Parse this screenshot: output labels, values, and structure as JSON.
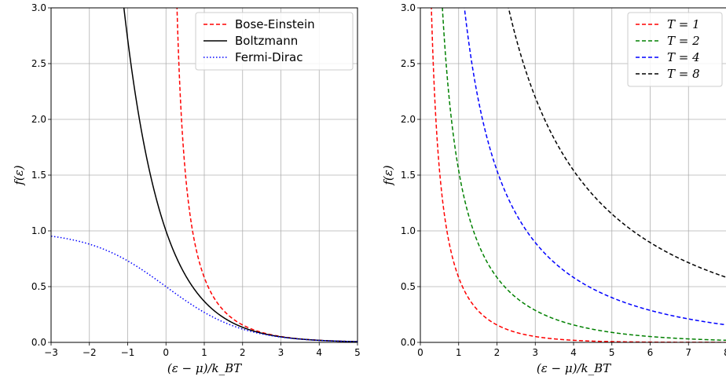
{
  "chart_data": [
    {
      "type": "line",
      "title": "",
      "xlabel": "(ε − μ)/k_BT",
      "ylabel": "f(ε)",
      "xlim": [
        -3,
        5
      ],
      "ylim": [
        0,
        3
      ],
      "x_ticks": [
        "−3",
        "−2",
        "−1",
        "0",
        "1",
        "2",
        "3",
        "4",
        "5"
      ],
      "y_ticks": [
        "0.0",
        "0.5",
        "1.0",
        "1.5",
        "2.0",
        "2.5",
        "3.0"
      ],
      "grid": true,
      "legend_position": "top-right",
      "series": [
        {
          "name": "Bose-Einstein",
          "function": "1/(exp(x)-1)",
          "color": "#ff0000",
          "style": "dashed",
          "points": [
            [
              0.29,
              3.0
            ],
            [
              0.5,
              1.54
            ],
            [
              1,
              0.58
            ],
            [
              1.5,
              0.29
            ],
            [
              2,
              0.16
            ],
            [
              3,
              0.05
            ],
            [
              4,
              0.019
            ],
            [
              5,
              0.007
            ]
          ]
        },
        {
          "name": "Boltzmann",
          "function": "exp(-x)",
          "color": "#000000",
          "style": "solid",
          "points": [
            [
              -1.1,
              3.0
            ],
            [
              -1,
              2.72
            ],
            [
              -0.5,
              1.65
            ],
            [
              0,
              1.0
            ],
            [
              0.5,
              0.61
            ],
            [
              1,
              0.37
            ],
            [
              2,
              0.14
            ],
            [
              3,
              0.05
            ],
            [
              4,
              0.018
            ],
            [
              5,
              0.007
            ]
          ]
        },
        {
          "name": "Fermi-Dirac",
          "function": "1/(exp(x)+1)",
          "color": "#0000ff",
          "style": "dotted",
          "points": [
            [
              -3,
              0.95
            ],
            [
              -2,
              0.88
            ],
            [
              -1,
              0.73
            ],
            [
              0,
              0.5
            ],
            [
              1,
              0.27
            ],
            [
              2,
              0.12
            ],
            [
              3,
              0.05
            ],
            [
              4,
              0.018
            ],
            [
              5,
              0.007
            ]
          ]
        }
      ]
    },
    {
      "type": "line",
      "title": "",
      "xlabel": "(ε − μ)/k_BT",
      "ylabel": "f(ε)",
      "xlim": [
        0,
        8
      ],
      "ylim": [
        0,
        3
      ],
      "x_ticks": [
        "0",
        "1",
        "2",
        "3",
        "4",
        "5",
        "6",
        "7",
        "8"
      ],
      "y_ticks": [
        "0.0",
        "0.5",
        "1.0",
        "1.5",
        "2.0",
        "2.5",
        "3.0"
      ],
      "grid": true,
      "legend_position": "top-right",
      "series": [
        {
          "name": "T = 1",
          "T": 1,
          "function": "1/(exp(x/T)-1)",
          "color": "#ff0000",
          "style": "dashed"
        },
        {
          "name": "T = 2",
          "T": 2,
          "function": "1/(exp(x/T)-1)",
          "color": "#008000",
          "style": "dashed"
        },
        {
          "name": "T = 4",
          "T": 4,
          "function": "1/(exp(x/T)-1)",
          "color": "#0000ff",
          "style": "dashed"
        },
        {
          "name": "T = 8",
          "T": 8,
          "function": "1/(exp(x/T)-1)",
          "color": "#000000",
          "style": "dashed"
        }
      ]
    }
  ]
}
